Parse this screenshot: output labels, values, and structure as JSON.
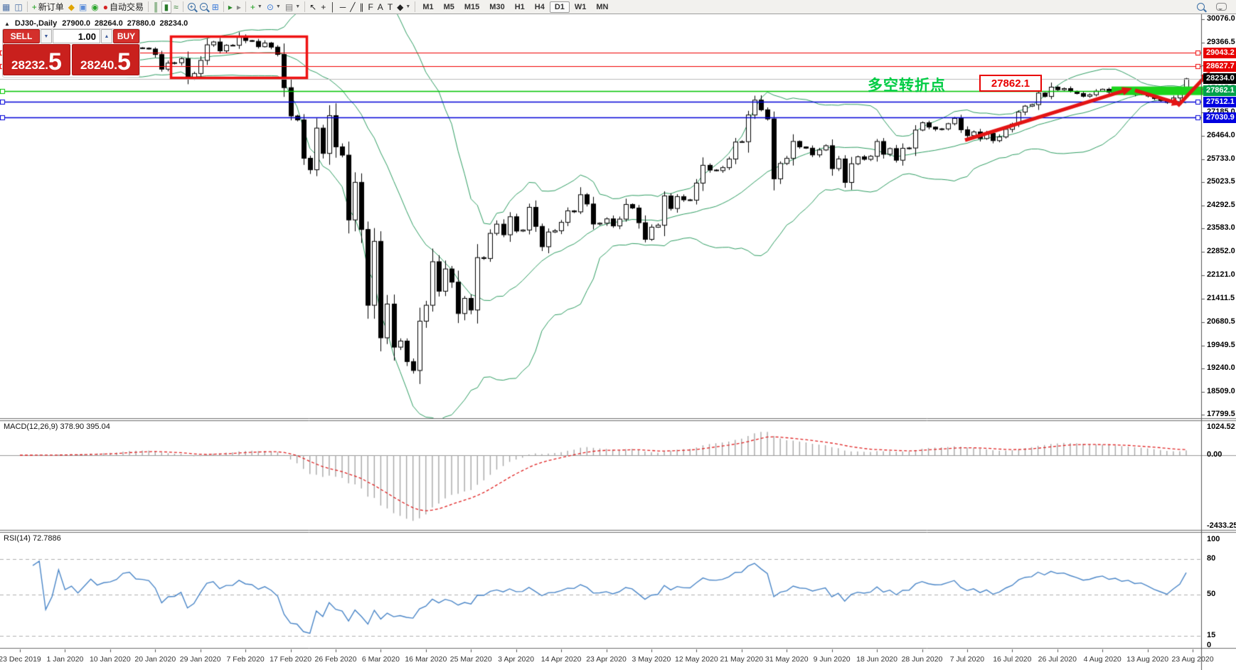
{
  "toolbar": {
    "groups": [
      {
        "items": [
          {
            "name": "chart-window-icon",
            "glyph": "▦",
            "color": "#4a6fa5"
          },
          {
            "name": "data-window-icon",
            "glyph": "◫",
            "color": "#4a6fa5"
          }
        ]
      },
      {
        "items": [
          {
            "name": "new-order-icon",
            "glyph": "+",
            "color": "#189c18",
            "label": "新订单"
          },
          {
            "name": "indicator-list-icon",
            "glyph": "◆",
            "color": "#e0a400"
          },
          {
            "name": "expert-advisors-icon",
            "glyph": "▣",
            "color": "#5b8dd9"
          },
          {
            "name": "signals-icon",
            "glyph": "◉",
            "color": "#2aa52a"
          },
          {
            "name": "auto-trading-icon",
            "glyph": "●",
            "color": "#d42222",
            "label": "自动交易"
          }
        ]
      },
      {
        "items": [
          {
            "name": "bar-chart-icon",
            "glyph": "║",
            "color": "#2a7a2a"
          },
          {
            "name": "candlestick-chart-icon",
            "glyph": "▮",
            "color": "#2a7a2a",
            "pressed": true
          },
          {
            "name": "line-chart-icon",
            "glyph": "≈",
            "color": "#2a7a2a"
          }
        ]
      },
      {
        "items": [
          {
            "name": "zoom-in-icon",
            "type": "mag",
            "sign": "+"
          },
          {
            "name": "zoom-out-icon",
            "type": "mag",
            "sign": "−"
          },
          {
            "name": "tile-windows-icon",
            "glyph": "⊞",
            "color": "#3a7ad9"
          }
        ]
      },
      {
        "items": [
          {
            "name": "auto-scroll-icon",
            "glyph": "▸",
            "color": "#2a8a2a"
          },
          {
            "name": "chart-shift-icon",
            "glyph": "▸",
            "color": "#888888"
          }
        ]
      },
      {
        "items": [
          {
            "name": "add-indicator-icon",
            "glyph": "+",
            "color": "#189c18",
            "caret": true
          },
          {
            "name": "periods-icon",
            "glyph": "⊙",
            "color": "#3a7ad9",
            "caret": true
          },
          {
            "name": "templates-icon",
            "glyph": "▤",
            "color": "#777777",
            "caret": true
          }
        ]
      },
      {
        "items": [
          {
            "name": "cursor-icon",
            "glyph": "↖",
            "color": "#222222"
          },
          {
            "name": "crosshair-icon",
            "glyph": "+",
            "color": "#222222"
          },
          {
            "name": "vertical-line-icon",
            "glyph": "│",
            "color": "#222222"
          },
          {
            "name": "horizontal-line-icon",
            "glyph": "─",
            "color": "#222222"
          },
          {
            "name": "trendline-icon",
            "glyph": "╱",
            "color": "#222222"
          },
          {
            "name": "equidistant-channel-icon",
            "glyph": "∥",
            "color": "#222222"
          },
          {
            "name": "fibonacci-icon",
            "glyph": "F",
            "color": "#222222"
          },
          {
            "name": "text-icon",
            "glyph": "A",
            "color": "#222222"
          },
          {
            "name": "text-label-icon",
            "glyph": "T",
            "color": "#222222"
          },
          {
            "name": "arrows-icon",
            "glyph": "◆",
            "color": "#222222",
            "caret": true
          }
        ]
      }
    ],
    "timeframes": [
      "M1",
      "M5",
      "M15",
      "M30",
      "H1",
      "H4",
      "D1",
      "W1",
      "MN"
    ],
    "active_timeframe": "D1",
    "right_icons": [
      {
        "name": "search-icon",
        "type": "mag",
        "sign": ""
      },
      {
        "name": "chat-icon",
        "type": "chat"
      }
    ]
  },
  "chart_header": {
    "collapse_arrow": "▲",
    "symbol_period": "DJ30-,Daily",
    "open": "27900.0",
    "high": "28264.0",
    "low": "27880.0",
    "close": "28234.0"
  },
  "one_click": {
    "sell_label": "SELL",
    "buy_label": "BUY",
    "volume": "1.00",
    "sell_price_main": "28232.",
    "sell_price_big": "5",
    "buy_price_main": "28240.",
    "buy_price_big": "5"
  },
  "price_levels": [
    {
      "label": "29043.2",
      "price": 29043.2,
      "line_color": "#f00000",
      "badge_color": "#e80000",
      "line_width": 1.2,
      "handles": true
    },
    {
      "label": "28627.7",
      "price": 28627.7,
      "line_color": "#f00000",
      "badge_color": "#e80000",
      "line_width": 1.2,
      "handles": true
    },
    {
      "label": "28234.0",
      "price": 28234.0,
      "line_color": "#bcbcbc",
      "badge_color": "#000000",
      "line_width": 1.1,
      "handles": false
    },
    {
      "label": "27862.1",
      "price": 27862.1,
      "line_color": "#00c400",
      "badge_color": "#00a14b",
      "line_width": 1.4,
      "handles": true
    },
    {
      "label": "27512.1",
      "price": 27512.1,
      "line_color": "#0000d8",
      "badge_color": "#0000e0",
      "line_width": 1.6,
      "handles": true
    },
    {
      "label": "27030.9",
      "price": 27030.9,
      "line_color": "#0000d8",
      "badge_color": "#0000e0",
      "line_width": 1.6,
      "handles": true
    }
  ],
  "annotations": {
    "turning_point_text": "多空转折点",
    "turning_point_color": "#00cc44",
    "price_flag_text": "27862.1",
    "price_flag_color": "#e80000",
    "highlight_band_price": 27862.1,
    "highlight_band_color": "#1bd41b",
    "focus_rect_color": "#ee1111",
    "trend_arrow_color": "#e31414"
  },
  "indicators": {
    "macd": {
      "label": "MACD(12,26,9) 378.90 395.04",
      "params": "12,26,9",
      "value_main": 378.9,
      "value_signal": 395.04,
      "axis_labels": [
        "1024.52",
        "0.00",
        "-2433.25"
      ],
      "hist_color": "#a6a6a6",
      "signal_color": "#e02020",
      "zero_line_color": "#9a9a9a"
    },
    "rsi": {
      "label": "RSI(14) 72.7886",
      "params": "14",
      "value": 72.7886,
      "axis_labels": [
        "100",
        "80",
        "50",
        "15",
        "0"
      ],
      "levels": [
        80,
        50,
        15
      ],
      "line_color": "#4a86c8",
      "level_color": "#b0b0b0"
    }
  },
  "chart_data": {
    "type": "candlestick",
    "symbol": "DJ30-",
    "period": "Daily",
    "ylim": [
      17690,
      30241
    ],
    "ohlc_last": {
      "open": 27900.0,
      "high": 28264.0,
      "low": 27880.0,
      "close": 28234.0
    },
    "first_open": 28510,
    "closes": [
      28551,
      28515,
      28621,
      28645,
      28462,
      28538,
      28868,
      28634,
      28703,
      28583,
      28745,
      28956,
      28823,
      28907,
      28939,
      29030,
      29297,
      29348,
      29196,
      29186,
      29160,
      28989,
      28535,
      28722,
      28734,
      28859,
      28256,
      28399,
      28807,
      29290,
      29379,
      29102,
      29276,
      29276,
      29551,
      29423,
      29398,
      29232,
      29348,
      29219,
      28992,
      27960,
      27081,
      26957,
      25766,
      25409,
      26703,
      25917,
      27090,
      26121,
      25864,
      23851,
      25018,
      23553,
      21200,
      23185,
      20188,
      21237,
      19898,
      20087,
      19450,
      19173,
      20704,
      21200,
      22552,
      21636,
      22327,
      21917,
      20943,
      21413,
      21052,
      22679,
      22653,
      23433,
      23719,
      23390,
      23949,
      23504,
      23537,
      24242,
      23650,
      23018,
      23475,
      23515,
      23775,
      24133,
      24101,
      24633,
      24345,
      23723,
      23749,
      23883,
      23664,
      23875,
      24331,
      24221,
      23764,
      23247,
      23625,
      23685,
      24597,
      24206,
      24575,
      24474,
      24465,
      24995,
      25548,
      25400,
      25383,
      25475,
      25742,
      26269,
      26281,
      27110,
      27572,
      27272,
      26989,
      25128,
      25605,
      25763,
      26289,
      26119,
      26080,
      25871,
      26024,
      26156,
      25445,
      25745,
      25015,
      25595,
      25812,
      25734,
      25827,
      26287,
      25890,
      26067,
      25706,
      26075,
      26085,
      26642,
      26870,
      26734,
      26671,
      26680,
      26840,
      27005,
      26652,
      26469,
      26584,
      26379,
      26539,
      26313,
      26428,
      26664,
      26828,
      27201,
      27386,
      27433,
      27791,
      27686,
      27976,
      27896,
      27931,
      27844,
      27778,
      27692,
      27739,
      27850,
      27910,
      27820,
      27870,
      27790,
      27830,
      27750,
      27770,
      27700,
      27620,
      27560,
      27500,
      27640,
      27780,
      28234
    ],
    "y_tick_labels": [
      "30076.0",
      "29366.5",
      "28656.0",
      "27925.5",
      "27185.0",
      "26464.0",
      "25733.0",
      "25023.5",
      "24292.5",
      "23583.0",
      "22852.0",
      "22121.0",
      "21411.5",
      "20680.5",
      "19949.5",
      "19240.0",
      "18509.0",
      "17799.5"
    ],
    "x_labels": [
      "23 Dec 2019",
      "1 Jan 2020",
      "10 Jan 2020",
      "20 Jan 2020",
      "29 Jan 2020",
      "7 Feb 2020",
      "17 Feb 2020",
      "26 Feb 2020",
      "6 Mar 2020",
      "16 Mar 2020",
      "25 Mar 2020",
      "3 Apr 2020",
      "14 Apr 2020",
      "23 Apr 2020",
      "3 May 2020",
      "12 May 2020",
      "21 May 2020",
      "31 May 2020",
      "9 Jun 2020",
      "18 Jun 2020",
      "28 Jun 2020",
      "7 Jul 2020",
      "16 Jul 2020",
      "26 Jul 2020",
      "4 Aug 2020",
      "13 Aug 2020",
      "23 Aug 2020"
    ],
    "x_label_step_candles": 7,
    "bollinger": {
      "period": 20,
      "deviation": 2,
      "color": "#2f9e63"
    },
    "candle_up_fill": "#ffffff",
    "candle_down_fill": "#000000",
    "candle_border": "#000000"
  }
}
